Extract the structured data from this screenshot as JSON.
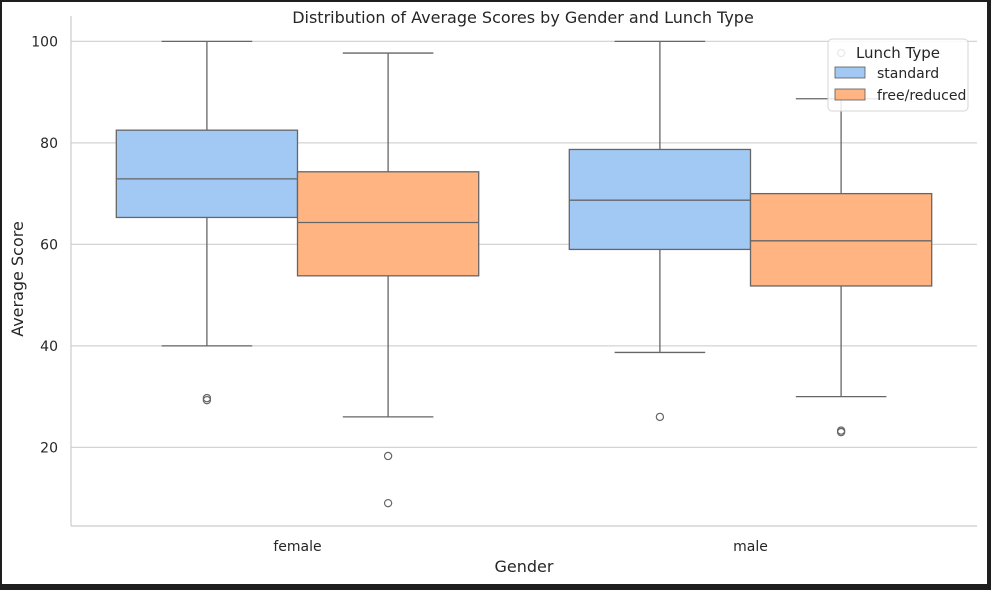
{
  "chart_data": {
    "type": "box",
    "title": "Distribution of Average Scores by Gender and Lunch Type",
    "xlabel": "Gender",
    "ylabel": "Average Score",
    "categories": [
      "female",
      "male"
    ],
    "ylim": [
      4.5,
      105
    ],
    "yticks": [
      20,
      40,
      60,
      80,
      100
    ],
    "grid": "horizontal",
    "legend": {
      "title": "Lunch Type",
      "placement": "top-right",
      "entries": [
        "standard",
        "free/reduced"
      ]
    },
    "series": [
      {
        "name": "standard",
        "color": "#a1c9f4",
        "boxes": [
          {
            "category": "female",
            "whisker_low": 40,
            "q1": 65.3,
            "median": 72.9,
            "q3": 82.5,
            "whisker_high": 100,
            "outliers": [
              29.3,
              29.7
            ]
          },
          {
            "category": "male",
            "whisker_low": 38.7,
            "q1": 59,
            "median": 68.7,
            "q3": 78.7,
            "whisker_high": 100,
            "outliers": [
              26
            ]
          }
        ]
      },
      {
        "name": "free/reduced",
        "color": "#ffb482",
        "boxes": [
          {
            "category": "female",
            "whisker_low": 26,
            "q1": 53.8,
            "median": 64.3,
            "q3": 74.3,
            "whisker_high": 97.7,
            "outliers": [
              18.3,
              9
            ]
          },
          {
            "category": "male",
            "whisker_low": 30,
            "q1": 51.8,
            "median": 60.7,
            "q3": 70,
            "whisker_high": 88.7,
            "outliers": [
              23,
              23.3,
              97.7
            ]
          }
        ]
      }
    ]
  }
}
